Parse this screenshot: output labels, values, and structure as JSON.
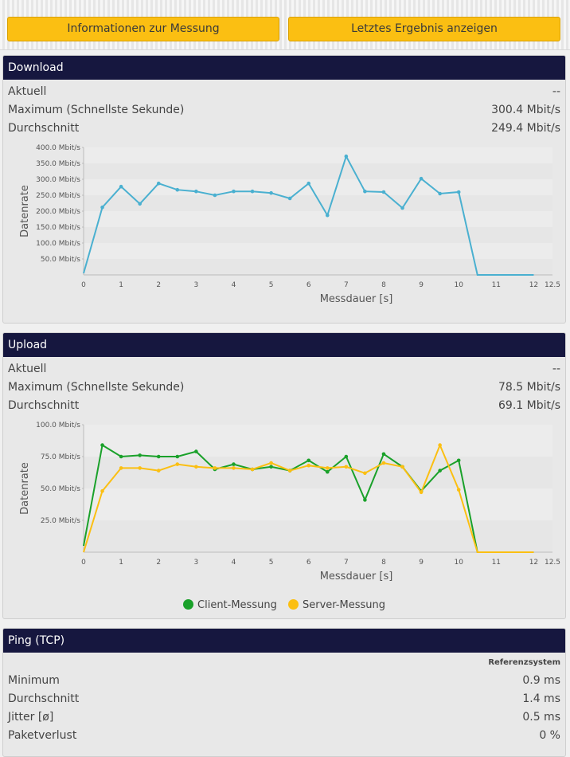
{
  "toolbar": {
    "info_label": "Informationen zur Messung",
    "last_result_label": "Letztes Ergebnis anzeigen"
  },
  "download": {
    "title": "Download",
    "rows": [
      {
        "label": "Aktuell",
        "value": "--"
      },
      {
        "label": "Maximum (Schnellste Sekunde)",
        "value": "300.4 Mbit/s"
      },
      {
        "label": "Durchschnitt",
        "value": "249.4 Mbit/s"
      }
    ],
    "chart_data": {
      "type": "line",
      "title": "",
      "xlabel": "Messdauer [s]",
      "ylabel": "Datenrate",
      "xlim": [
        0,
        12.5
      ],
      "ylim": [
        0,
        400
      ],
      "x_ticks": [
        "0",
        "1",
        "2",
        "3",
        "4",
        "5",
        "6",
        "7",
        "8",
        "9",
        "10",
        "11",
        "12",
        "12.5"
      ],
      "y_ticks": [
        "50.0 Mbit/s",
        "100.0 Mbit/s",
        "150.0 Mbit/s",
        "200.0 Mbit/s",
        "250.0 Mbit/s",
        "300.0 Mbit/s",
        "350.0 Mbit/s",
        "400.0 Mbit/s"
      ],
      "series": [
        {
          "name": "Download",
          "color": "#4ab0d0",
          "x": [
            0,
            0.5,
            1,
            1.5,
            2,
            2.5,
            3,
            3.5,
            4,
            4.5,
            5,
            5.5,
            6,
            6.5,
            7,
            7.5,
            8,
            8.5,
            9,
            9.5,
            10,
            10.5,
            11,
            11.5,
            12
          ],
          "y": [
            5,
            212,
            277,
            223,
            287,
            267,
            262,
            250,
            262,
            262,
            257,
            240,
            287,
            187,
            372,
            262,
            260,
            210,
            302,
            255,
            260,
            0,
            0,
            0,
            0
          ]
        }
      ]
    }
  },
  "upload": {
    "title": "Upload",
    "rows": [
      {
        "label": "Aktuell",
        "value": "--"
      },
      {
        "label": "Maximum (Schnellste Sekunde)",
        "value": "78.5 Mbit/s"
      },
      {
        "label": "Durchschnitt",
        "value": "69.1 Mbit/s"
      }
    ],
    "chart_data": {
      "type": "line",
      "title": "",
      "xlabel": "Messdauer [s]",
      "ylabel": "Datenrate",
      "xlim": [
        0,
        12.5
      ],
      "ylim": [
        0,
        100
      ],
      "x_ticks": [
        "0",
        "1",
        "2",
        "3",
        "4",
        "5",
        "6",
        "7",
        "8",
        "9",
        "10",
        "11",
        "12",
        "12.5"
      ],
      "y_ticks": [
        "25.0 Mbit/s",
        "50.0 Mbit/s",
        "75.0 Mbit/s",
        "100.0 Mbit/s"
      ],
      "series": [
        {
          "name": "Client-Messung",
          "color": "#1aa12a",
          "x": [
            0,
            0.5,
            1,
            1.5,
            2,
            2.5,
            3,
            3.5,
            4,
            4.5,
            5,
            5.5,
            6,
            6.5,
            7,
            7.5,
            8,
            8.5,
            9,
            9.5,
            10,
            10.5,
            11,
            11.5,
            12
          ],
          "y": [
            5,
            84,
            75,
            76,
            75,
            75,
            79,
            65,
            69,
            65,
            67,
            64,
            72,
            63,
            75,
            41,
            77,
            67,
            48,
            64,
            72,
            0,
            0,
            0,
            0
          ]
        },
        {
          "name": "Server-Messung",
          "color": "#fbbf12",
          "x": [
            0,
            0.5,
            1,
            1.5,
            2,
            2.5,
            3,
            3.5,
            4,
            4.5,
            5,
            5.5,
            6,
            6.5,
            7,
            7.5,
            8,
            8.5,
            9,
            9.5,
            10,
            10.5,
            11,
            11.5,
            12
          ],
          "y": [
            0,
            48,
            66,
            66,
            64,
            69,
            67,
            66,
            66,
            65,
            70,
            64,
            68,
            66,
            67,
            62,
            70,
            67,
            47,
            84,
            49,
            0,
            0,
            0,
            0
          ]
        }
      ],
      "legend": [
        "Client-Messung",
        "Server-Messung"
      ]
    }
  },
  "ping": {
    "title": "Ping (TCP)",
    "column_header": "Referenzsystem",
    "rows": [
      {
        "label": "Minimum",
        "value": "0.9 ms"
      },
      {
        "label": "Durchschnitt",
        "value": "1.4 ms"
      },
      {
        "label": "Jitter [ø]",
        "value": "0.5 ms"
      },
      {
        "label": "Paketverlust",
        "value": "0 %"
      }
    ]
  }
}
